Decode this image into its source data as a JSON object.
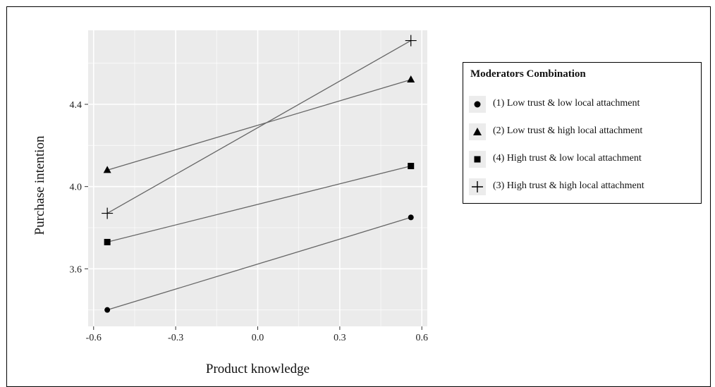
{
  "chart_data": {
    "type": "line",
    "title": "",
    "xlabel": "Product knowledge",
    "ylabel": "Purchase intention",
    "xlim": [
      -0.62,
      0.62
    ],
    "ylim": [
      3.32,
      4.76
    ],
    "x_ticks": [
      -0.6,
      -0.3,
      0.0,
      0.3,
      0.6
    ],
    "x_tick_labels": [
      "-0.6",
      "-0.3",
      "0.0",
      "0.3",
      "0.6"
    ],
    "y_ticks": [
      3.6,
      4.0,
      4.4
    ],
    "y_tick_labels": [
      "3.6",
      "4.0",
      "4.4"
    ],
    "grid": true,
    "legend_position": "right",
    "legend_title": "Moderators Combination",
    "x": [
      -0.55,
      0.56
    ],
    "series": [
      {
        "name": "(1)  Low trust & low local attachment",
        "marker": "circle",
        "values": [
          3.4,
          3.85
        ]
      },
      {
        "name": "(2)  Low trust & high local attachment",
        "marker": "triangle",
        "values": [
          4.08,
          4.52
        ]
      },
      {
        "name": "(4)  High trust & low local attachment",
        "marker": "square",
        "values": [
          3.73,
          4.1
        ]
      },
      {
        "name": "(3)  High trust & high local attachment",
        "marker": "plus",
        "values": [
          3.87,
          4.71
        ]
      }
    ]
  },
  "colors": {
    "panel": "#ebebeb",
    "grid": "#ffffff",
    "line": "#666666",
    "marker": "#000000"
  }
}
